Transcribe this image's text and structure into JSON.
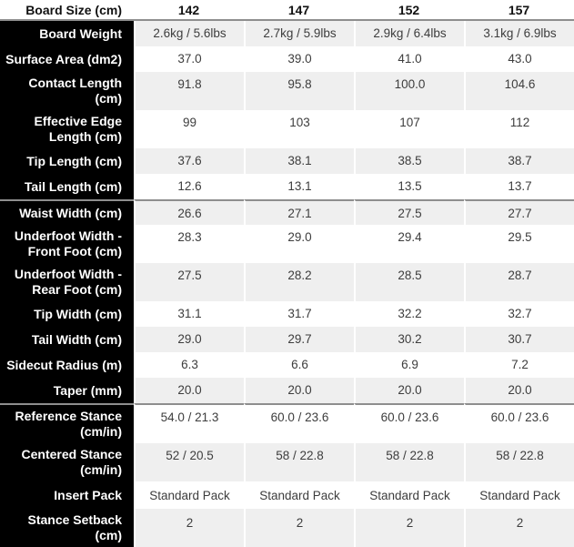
{
  "table": {
    "header": {
      "label": "Board Size (cm)",
      "sizes": [
        "142",
        "147",
        "152",
        "157"
      ]
    },
    "rows": [
      {
        "label": "Board Weight",
        "values": [
          "2.6kg / 5.6lbs",
          "2.7kg / 5.9lbs",
          "2.9kg / 6.4lbs",
          "3.1kg / 6.9lbs"
        ]
      },
      {
        "label": "Surface Area (dm2)",
        "values": [
          "37.0",
          "39.0",
          "41.0",
          "43.0"
        ]
      },
      {
        "label": "Contact Length (cm)",
        "values": [
          "91.8",
          "95.8",
          "100.0",
          "104.6"
        ]
      },
      {
        "label": "Effective Edge Length (cm)",
        "values": [
          "99",
          "103",
          "107",
          "112"
        ]
      },
      {
        "label": "Tip Length (cm)",
        "values": [
          "37.6",
          "38.1",
          "38.5",
          "38.7"
        ]
      },
      {
        "label": "Tail Length (cm)",
        "values": [
          "12.6",
          "13.1",
          "13.5",
          "13.7"
        ]
      },
      {
        "label": "Waist Width (cm)",
        "values": [
          "26.6",
          "27.1",
          "27.5",
          "27.7"
        ],
        "section_start": true
      },
      {
        "label": "Underfoot Width - Front Foot (cm)",
        "values": [
          "28.3",
          "29.0",
          "29.4",
          "29.5"
        ]
      },
      {
        "label": "Underfoot Width - Rear Foot (cm)",
        "values": [
          "27.5",
          "28.2",
          "28.5",
          "28.7"
        ]
      },
      {
        "label": "Tip Width (cm)",
        "values": [
          "31.1",
          "31.7",
          "32.2",
          "32.7"
        ]
      },
      {
        "label": "Tail Width (cm)",
        "values": [
          "29.0",
          "29.7",
          "30.2",
          "30.7"
        ]
      },
      {
        "label": "Sidecut Radius (m)",
        "values": [
          "6.3",
          "6.6",
          "6.9",
          "7.2"
        ]
      },
      {
        "label": "Taper (mm)",
        "values": [
          "20.0",
          "20.0",
          "20.0",
          "20.0"
        ]
      },
      {
        "label": "Reference Stance (cm/in)",
        "values": [
          "54.0 / 21.3",
          "60.0 / 23.6",
          "60.0 / 23.6",
          "60.0 / 23.6"
        ],
        "section_start": true
      },
      {
        "label": "Centered Stance (cm/in)",
        "values": [
          "52 / 20.5",
          "58 / 22.8",
          "58 / 22.8",
          "58 / 22.8"
        ]
      },
      {
        "label": "Insert Pack",
        "values": [
          "Standard Pack",
          "Standard Pack",
          "Standard Pack",
          "Standard Pack"
        ]
      },
      {
        "label": "Stance Setback (cm)",
        "values": [
          "2",
          "2",
          "2",
          "2"
        ]
      }
    ],
    "colors": {
      "label_bg": "#000000",
      "row_alt_bg": "#efefef",
      "divider": "#8e8e8e",
      "value_text": "#3d3d3d"
    }
  }
}
